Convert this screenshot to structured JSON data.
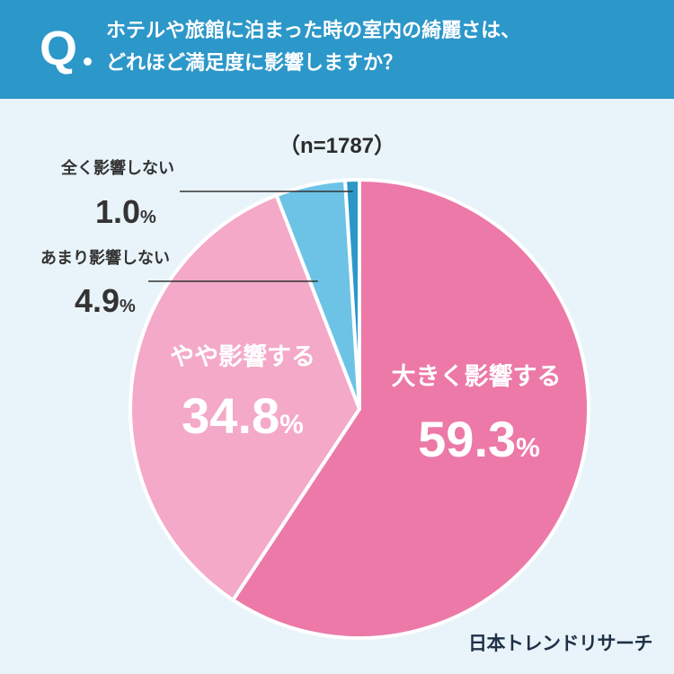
{
  "header": {
    "q_mark": "Q",
    "question_line1": "ホテルや旅館に泊まった時の室内の綺麗さは、",
    "question_line2": "どれほど満足度に影響しますか？",
    "bg_color": "#2c97c9"
  },
  "sample_size": "（n=1787）",
  "brand": "日本トレンドリサーチ",
  "chart_data": {
    "type": "pie",
    "start": "12 o'clock, clockwise",
    "slices": [
      {
        "label": "大きく影響する",
        "value": 59.3,
        "value_text": "59.3",
        "unit": "%",
        "color": "#ec79a8",
        "label_color": "#ffffff"
      },
      {
        "label": "やや影響する",
        "value": 34.8,
        "value_text": "34.8",
        "unit": "%",
        "color": "#f3a9c7",
        "label_color": "#ffffff"
      },
      {
        "label": "あまり影響しない",
        "value": 4.9,
        "value_text": "4.9",
        "unit": "%",
        "color": "#6cc3e6",
        "label_color": "#333333"
      },
      {
        "label": "全く影響しない",
        "value": 1.0,
        "value_text": "1.0",
        "unit": "%",
        "color": "#2c97c9",
        "label_color": "#333333"
      }
    ]
  }
}
